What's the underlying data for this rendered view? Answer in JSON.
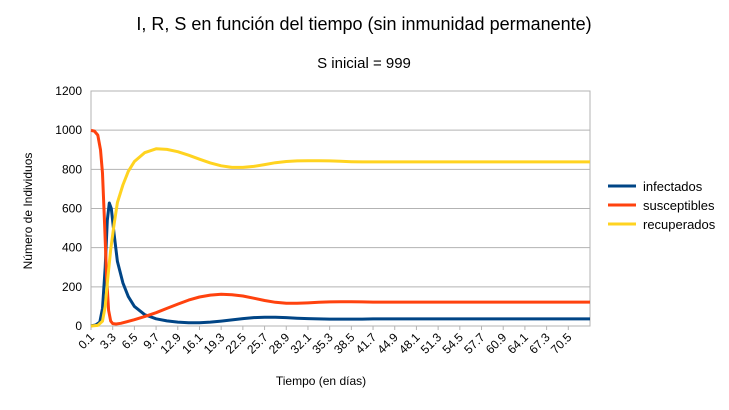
{
  "chart_data": {
    "type": "line",
    "title": "I, R, S en función del tiempo (sin inmunidad permanente)",
    "subtitle": "S inicial = 999",
    "xlabel": "Tiempo (en días)",
    "ylabel": "Número de Individuos",
    "ylim": [
      0,
      1200
    ],
    "yticks": [
      0,
      200,
      400,
      600,
      800,
      1000,
      1200
    ],
    "xlim": [
      0.1,
      73.7
    ],
    "xtick_labels": [
      "0.1",
      "3.3",
      "6.5",
      "9.7",
      "12.9",
      "16.1",
      "19.3",
      "22.5",
      "25.7",
      "28.9",
      "32.1",
      "35.3",
      "38.5",
      "41.7",
      "44.9",
      "48.1",
      "51.3",
      "54.5",
      "57.7",
      "60.9",
      "64.1",
      "67.3",
      "70.5"
    ],
    "grid": true,
    "legend_position": "right",
    "series": [
      {
        "name": "infectados",
        "color": "#004586",
        "x": [
          0.1,
          0.8,
          1.4,
          1.8,
          2.2,
          2.5,
          2.8,
          3.1,
          3.5,
          4.0,
          4.8,
          5.6,
          6.5,
          8.0,
          9.7,
          11.3,
          12.9,
          14.5,
          16.1,
          17.7,
          19.3,
          20.9,
          22.5,
          24.1,
          25.7,
          27.3,
          28.9,
          30.5,
          32.1,
          33.7,
          35.3,
          36.9,
          38.5,
          40.1,
          41.7,
          44.9,
          48.1,
          51.3,
          54.5,
          57.7,
          60.9,
          64.1,
          67.3,
          70.5,
          73.7
        ],
        "values": [
          1,
          5,
          20,
          90,
          300,
          540,
          628,
          600,
          470,
          330,
          220,
          150,
          100,
          58,
          37,
          26,
          20,
          17,
          17,
          20,
          25,
          31,
          38,
          43,
          45,
          45,
          43,
          40,
          38,
          36,
          35,
          35,
          35,
          35,
          36,
          36,
          36,
          36,
          36,
          36,
          36,
          36,
          36,
          36,
          36
        ]
      },
      {
        "name": "susceptibles",
        "color": "#ff420e",
        "x": [
          0.1,
          0.6,
          1.1,
          1.5,
          1.8,
          2.1,
          2.4,
          2.7,
          3.0,
          3.3,
          3.8,
          4.5,
          6.5,
          8.0,
          9.7,
          11.3,
          12.9,
          14.5,
          16.1,
          17.7,
          19.3,
          20.9,
          22.5,
          24.1,
          25.7,
          27.3,
          28.9,
          30.5,
          32.1,
          33.7,
          35.3,
          36.9,
          38.5,
          40.1,
          41.7,
          44.9,
          48.1,
          51.3,
          54.5,
          57.7,
          60.9,
          64.1,
          67.3,
          70.5,
          73.7
        ],
        "values": [
          999,
          995,
          975,
          900,
          780,
          520,
          250,
          80,
          25,
          12,
          10,
          14,
          32,
          48,
          68,
          90,
          112,
          132,
          148,
          158,
          162,
          160,
          153,
          142,
          130,
          121,
          116,
          116,
          118,
          121,
          123,
          124,
          124,
          123,
          122,
          122,
          122,
          122,
          122,
          122,
          122,
          122,
          122,
          122,
          122
        ]
      },
      {
        "name": "recuperados",
        "color": "#ffd320",
        "x": [
          0.1,
          1.1,
          1.8,
          2.2,
          2.6,
          3.0,
          3.5,
          4.0,
          4.8,
          5.6,
          6.5,
          8.0,
          9.7,
          11.3,
          12.9,
          14.5,
          16.1,
          17.7,
          19.3,
          20.9,
          22.5,
          24.1,
          25.7,
          27.3,
          28.9,
          30.5,
          32.1,
          33.7,
          35.3,
          36.9,
          38.5,
          40.1,
          41.7,
          44.9,
          48.1,
          51.3,
          54.5,
          57.7,
          60.9,
          64.1,
          67.3,
          70.5,
          73.7
        ],
        "values": [
          0,
          3,
          25,
          100,
          250,
          390,
          520,
          630,
          720,
          790,
          840,
          885,
          905,
          902,
          890,
          872,
          852,
          833,
          818,
          810,
          810,
          815,
          824,
          834,
          840,
          843,
          844,
          844,
          843,
          841,
          839,
          838,
          838,
          838,
          838,
          838,
          838,
          838,
          838,
          838,
          838,
          838,
          838
        ]
      }
    ]
  }
}
